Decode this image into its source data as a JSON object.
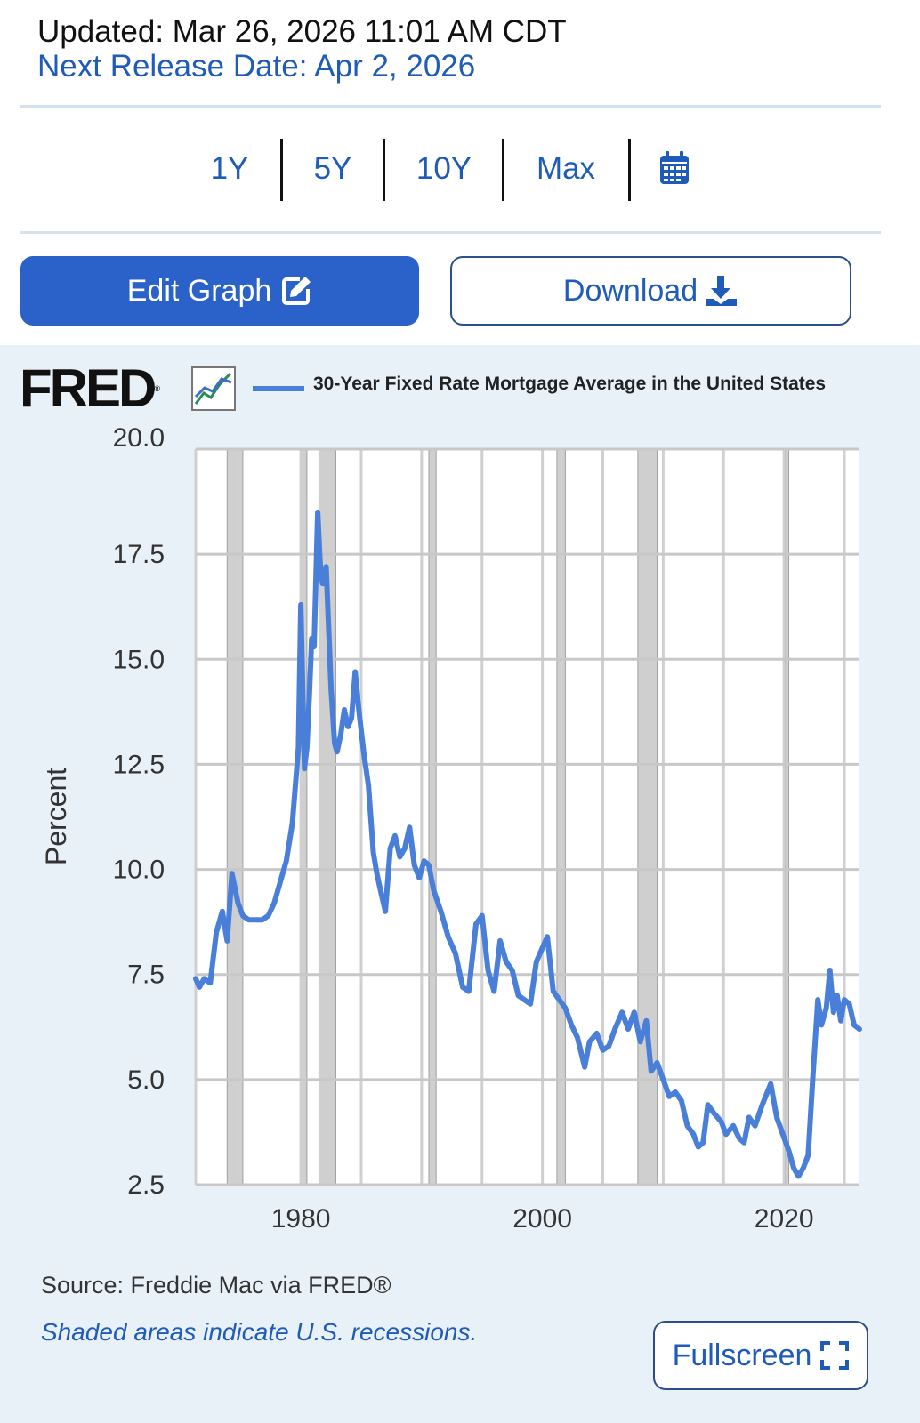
{
  "header": {
    "updated": "Updated: Mar 26, 2026 11:01 AM CDT",
    "next_release": "Next Release Date: Apr 2, 2026"
  },
  "range_buttons": [
    "1Y",
    "5Y",
    "10Y",
    "Max"
  ],
  "actions": {
    "edit_label": "Edit Graph",
    "download_label": "Download",
    "fullscreen_label": "Fullscreen"
  },
  "icons": {
    "calendar": "calendar-icon",
    "edit": "edit-icon",
    "download": "download-icon",
    "fullscreen": "fullscreen-icon",
    "trend": "trend-icon"
  },
  "colors": {
    "accent": "#1f5bb8",
    "button_fill": "#2a62c9",
    "series": "#4a7fd9",
    "panel_bg": "#e8f0f8",
    "recession": "#cfcfcf"
  },
  "logo_text": "FRED",
  "footer": {
    "source": "Source: Freddie Mac via FRED®",
    "shaded_note": "Shaded areas indicate U.S. recessions."
  },
  "chart_data": {
    "type": "line",
    "title": "",
    "xlabel": "",
    "ylabel": "Percent",
    "xlim": [
      1971.3,
      2026.25
    ],
    "ylim": [
      2.5,
      20.0
    ],
    "x_ticks": [
      1980,
      2000,
      2020
    ],
    "y_ticks": [
      2.5,
      5.0,
      7.5,
      10.0,
      12.5,
      15.0,
      17.5,
      20.0
    ],
    "y_tick_labels": [
      "2.5",
      "5.0",
      "7.5",
      "10.0",
      "12.5",
      "15.0",
      "17.5",
      "20.0"
    ],
    "grid": true,
    "legend": "top",
    "series": [
      {
        "name": "30-Year Fixed Rate Mortgage Average in the United States",
        "color": "#4a7fd9",
        "x": [
          1971.3,
          1971.6,
          1972.0,
          1972.5,
          1973.0,
          1973.5,
          1973.9,
          1974.3,
          1974.8,
          1975.2,
          1975.7,
          1976.2,
          1976.8,
          1977.3,
          1977.8,
          1978.3,
          1978.8,
          1979.3,
          1979.8,
          1980.0,
          1980.3,
          1980.5,
          1980.7,
          1980.9,
          1981.1,
          1981.4,
          1981.6,
          1981.8,
          1982.1,
          1982.5,
          1982.8,
          1983.0,
          1983.3,
          1983.6,
          1983.9,
          1984.2,
          1984.5,
          1984.8,
          1985.2,
          1985.6,
          1986.0,
          1986.3,
          1986.6,
          1987.0,
          1987.4,
          1987.8,
          1988.2,
          1988.6,
          1989.0,
          1989.4,
          1989.8,
          1990.2,
          1990.6,
          1991.0,
          1991.6,
          1992.2,
          1992.8,
          1993.4,
          1993.9,
          1994.5,
          1995.0,
          1995.5,
          1996.0,
          1996.5,
          1997.0,
          1997.5,
          1998.0,
          1998.5,
          1999.0,
          1999.5,
          2000.4,
          2000.9,
          2001.4,
          2001.9,
          2002.4,
          2002.9,
          2003.5,
          2003.9,
          2004.5,
          2005.0,
          2005.5,
          2006.0,
          2006.6,
          2007.1,
          2007.6,
          2008.1,
          2008.6,
          2009.0,
          2009.5,
          2010.0,
          2010.5,
          2011.0,
          2011.5,
          2012.0,
          2012.5,
          2012.9,
          2013.3,
          2013.7,
          2014.2,
          2014.8,
          2015.2,
          2015.8,
          2016.3,
          2016.7,
          2017.1,
          2017.6,
          2018.2,
          2018.9,
          2019.4,
          2019.9,
          2020.4,
          2020.8,
          2021.2,
          2021.6,
          2022.0,
          2022.4,
          2022.8,
          2023.1,
          2023.5,
          2023.8,
          2024.1,
          2024.4,
          2024.7,
          2025.0,
          2025.4,
          2025.8,
          2026.25
        ],
        "values": [
          7.4,
          7.2,
          7.4,
          7.3,
          8.5,
          9.0,
          8.3,
          9.9,
          9.2,
          8.9,
          8.8,
          8.8,
          8.8,
          8.9,
          9.2,
          9.7,
          10.2,
          11.1,
          12.9,
          16.3,
          12.4,
          12.9,
          14.1,
          15.5,
          15.3,
          18.5,
          17.3,
          16.8,
          17.2,
          14.3,
          13.0,
          12.8,
          13.2,
          13.8,
          13.4,
          13.6,
          14.7,
          13.8,
          12.8,
          12.0,
          10.4,
          9.9,
          9.5,
          9.0,
          10.5,
          10.8,
          10.3,
          10.5,
          11.0,
          10.1,
          9.8,
          10.2,
          10.1,
          9.5,
          9.0,
          8.4,
          8.0,
          7.2,
          7.1,
          8.7,
          8.9,
          7.6,
          7.1,
          8.3,
          7.8,
          7.6,
          7.0,
          6.9,
          6.8,
          7.8,
          8.4,
          7.1,
          6.9,
          6.7,
          6.3,
          6.0,
          5.3,
          5.9,
          6.1,
          5.7,
          5.8,
          6.2,
          6.6,
          6.2,
          6.6,
          5.9,
          6.4,
          5.2,
          5.4,
          5.0,
          4.6,
          4.7,
          4.5,
          3.9,
          3.7,
          3.4,
          3.5,
          4.4,
          4.2,
          4.0,
          3.7,
          3.9,
          3.6,
          3.5,
          4.1,
          3.9,
          4.4,
          4.9,
          4.1,
          3.7,
          3.3,
          2.9,
          2.7,
          2.9,
          3.2,
          5.1,
          6.9,
          6.3,
          6.7,
          7.6,
          6.6,
          7.0,
          6.4,
          6.9,
          6.8,
          6.3,
          6.2
        ]
      }
    ],
    "recessions": [
      [
        1973.9,
        1975.2
      ],
      [
        1980.0,
        1980.5
      ],
      [
        1981.5,
        1982.9
      ],
      [
        1990.6,
        1991.2
      ],
      [
        2001.2,
        2001.9
      ],
      [
        2007.9,
        2009.5
      ],
      [
        2020.1,
        2020.3
      ]
    ]
  }
}
